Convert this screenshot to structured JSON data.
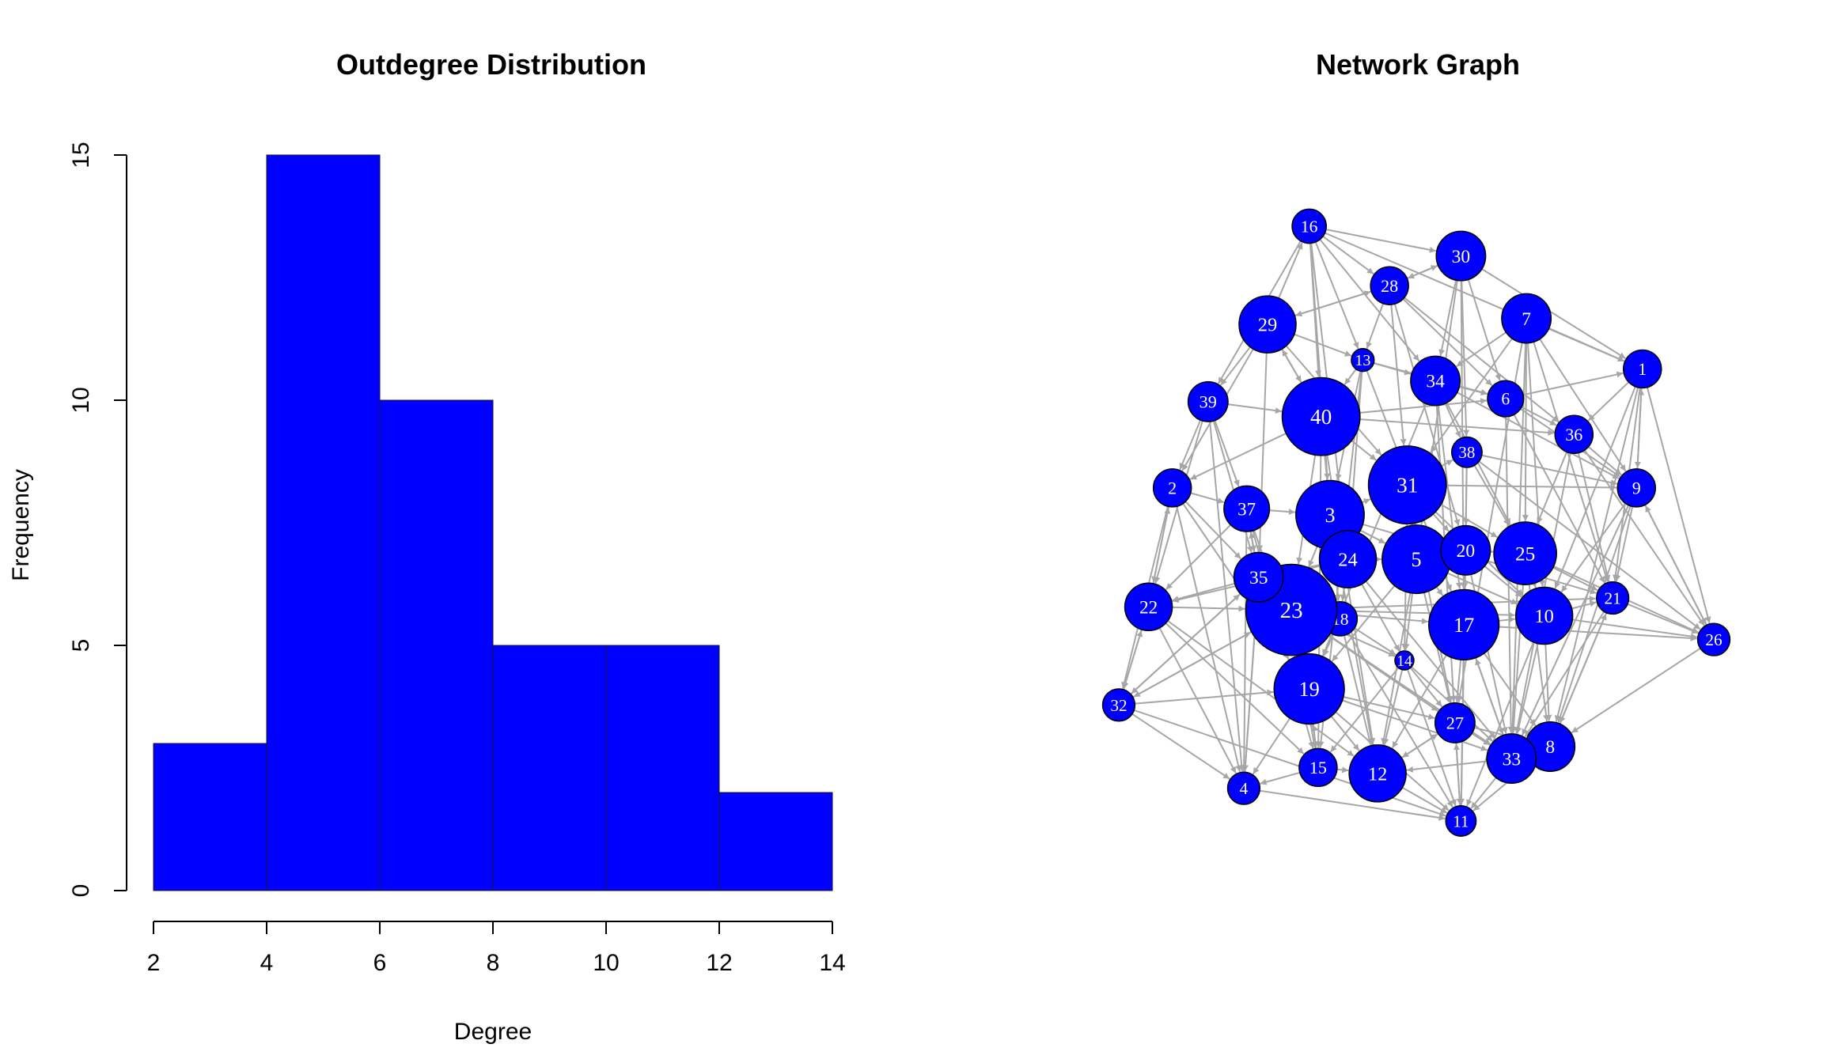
{
  "colors": {
    "bar_fill": "#0000ff",
    "node_fill": "#0000ff",
    "node_label": "#ffffff",
    "edge": "#a6a6a6",
    "axis": "#000000"
  },
  "chart_data": [
    {
      "type": "bar",
      "subtype": "histogram",
      "title": "Outdegree Distribution",
      "xlabel": "Degree",
      "ylabel": "Frequency",
      "bins": [
        [
          2,
          4
        ],
        [
          4,
          6
        ],
        [
          6,
          8
        ],
        [
          8,
          10
        ],
        [
          10,
          12
        ],
        [
          12,
          14
        ]
      ],
      "values": [
        3,
        15,
        10,
        5,
        5,
        2
      ],
      "xlim": [
        2,
        14
      ],
      "ylim": [
        0,
        15
      ],
      "x_ticks": [
        "2",
        "4",
        "6",
        "8",
        "10",
        "12",
        "14"
      ],
      "y_ticks": [
        "0",
        "5",
        "10",
        "15"
      ],
      "grid": false
    },
    {
      "type": "network",
      "title": "Network Graph",
      "directed": true,
      "nodes": [
        {
          "id": "1",
          "x": 0.88,
          "y": 0.76,
          "size": 1.0
        },
        {
          "id": "2",
          "x": 0.09,
          "y": 0.56,
          "size": 1.0
        },
        {
          "id": "3",
          "x": 0.355,
          "y": 0.515,
          "size": 1.8
        },
        {
          "id": "4",
          "x": 0.21,
          "y": 0.055,
          "size": 0.85
        },
        {
          "id": "5",
          "x": 0.5,
          "y": 0.44,
          "size": 1.8
        },
        {
          "id": "6",
          "x": 0.65,
          "y": 0.71,
          "size": 0.95
        },
        {
          "id": "7",
          "x": 0.685,
          "y": 0.845,
          "size": 1.3
        },
        {
          "id": "8",
          "x": 0.725,
          "y": 0.125,
          "size": 1.3
        },
        {
          "id": "9",
          "x": 0.87,
          "y": 0.56,
          "size": 1.0
        },
        {
          "id": "10",
          "x": 0.715,
          "y": 0.345,
          "size": 1.5
        },
        {
          "id": "11",
          "x": 0.575,
          "y": 0.0,
          "size": 0.8
        },
        {
          "id": "12",
          "x": 0.435,
          "y": 0.08,
          "size": 1.5
        },
        {
          "id": "13",
          "x": 0.41,
          "y": 0.775,
          "size": 0.6
        },
        {
          "id": "14",
          "x": 0.48,
          "y": 0.27,
          "size": 0.5
        },
        {
          "id": "15",
          "x": 0.335,
          "y": 0.09,
          "size": 1.0
        },
        {
          "id": "16",
          "x": 0.32,
          "y": 1.0,
          "size": 0.9
        },
        {
          "id": "17",
          "x": 0.58,
          "y": 0.33,
          "size": 1.85
        },
        {
          "id": "18",
          "x": 0.372,
          "y": 0.34,
          "size": 0.9
        },
        {
          "id": "19",
          "x": 0.32,
          "y": 0.222,
          "size": 1.85
        },
        {
          "id": "20",
          "x": 0.583,
          "y": 0.455,
          "size": 1.3
        },
        {
          "id": "21",
          "x": 0.83,
          "y": 0.375,
          "size": 0.85
        },
        {
          "id": "22",
          "x": 0.05,
          "y": 0.36,
          "size": 1.25
        },
        {
          "id": "23",
          "x": 0.29,
          "y": 0.355,
          "size": 2.4
        },
        {
          "id": "24",
          "x": 0.385,
          "y": 0.44,
          "size": 1.5
        },
        {
          "id": "25",
          "x": 0.683,
          "y": 0.45,
          "size": 1.65
        },
        {
          "id": "26",
          "x": 1.0,
          "y": 0.305,
          "size": 0.85
        },
        {
          "id": "27",
          "x": 0.565,
          "y": 0.165,
          "size": 1.05
        },
        {
          "id": "28",
          "x": 0.455,
          "y": 0.9,
          "size": 1.0
        },
        {
          "id": "29",
          "x": 0.25,
          "y": 0.835,
          "size": 1.5
        },
        {
          "id": "30",
          "x": 0.575,
          "y": 0.95,
          "size": 1.3
        },
        {
          "id": "31",
          "x": 0.485,
          "y": 0.565,
          "size": 2.05
        },
        {
          "id": "32",
          "x": 0.0,
          "y": 0.195,
          "size": 0.85
        },
        {
          "id": "33",
          "x": 0.66,
          "y": 0.105,
          "size": 1.3
        },
        {
          "id": "34",
          "x": 0.532,
          "y": 0.74,
          "size": 1.3
        },
        {
          "id": "35",
          "x": 0.235,
          "y": 0.41,
          "size": 1.3
        },
        {
          "id": "36",
          "x": 0.765,
          "y": 0.65,
          "size": 1.0
        },
        {
          "id": "37",
          "x": 0.215,
          "y": 0.525,
          "size": 1.2
        },
        {
          "id": "38",
          "x": 0.585,
          "y": 0.62,
          "size": 0.8
        },
        {
          "id": "39",
          "x": 0.15,
          "y": 0.705,
          "size": 1.05
        },
        {
          "id": "40",
          "x": 0.34,
          "y": 0.68,
          "size": 2.05
        }
      ],
      "edges": [
        [
          "16",
          "28"
        ],
        [
          "16",
          "30"
        ],
        [
          "16",
          "13"
        ],
        [
          "16",
          "40"
        ],
        [
          "16",
          "3"
        ],
        [
          "16",
          "39"
        ],
        [
          "16",
          "1"
        ],
        [
          "16",
          "34"
        ],
        [
          "16",
          "24"
        ],
        [
          "30",
          "28"
        ],
        [
          "30",
          "34"
        ],
        [
          "30",
          "38"
        ],
        [
          "30",
          "5"
        ],
        [
          "30",
          "1"
        ],
        [
          "30",
          "6"
        ],
        [
          "30",
          "17"
        ],
        [
          "28",
          "13"
        ],
        [
          "28",
          "29"
        ],
        [
          "28",
          "31"
        ],
        [
          "28",
          "6"
        ],
        [
          "28",
          "20"
        ],
        [
          "28",
          "36"
        ],
        [
          "7",
          "1"
        ],
        [
          "7",
          "34"
        ],
        [
          "7",
          "25"
        ],
        [
          "7",
          "9"
        ],
        [
          "7",
          "10"
        ],
        [
          "7",
          "31"
        ],
        [
          "7",
          "21"
        ],
        [
          "7",
          "33"
        ],
        [
          "7",
          "27"
        ],
        [
          "29",
          "16"
        ],
        [
          "29",
          "39"
        ],
        [
          "29",
          "2"
        ],
        [
          "29",
          "13"
        ],
        [
          "29",
          "31"
        ],
        [
          "29",
          "35"
        ],
        [
          "29",
          "40"
        ],
        [
          "13",
          "40"
        ],
        [
          "13",
          "34"
        ],
        [
          "13",
          "6"
        ],
        [
          "13",
          "3"
        ],
        [
          "13",
          "24"
        ],
        [
          "13",
          "17"
        ],
        [
          "13",
          "15"
        ],
        [
          "39",
          "2"
        ],
        [
          "39",
          "37"
        ],
        [
          "39",
          "22"
        ],
        [
          "39",
          "40"
        ],
        [
          "39",
          "35"
        ],
        [
          "39",
          "4"
        ],
        [
          "40",
          "31"
        ],
        [
          "40",
          "6"
        ],
        [
          "40",
          "36"
        ],
        [
          "40",
          "29"
        ],
        [
          "40",
          "2"
        ],
        [
          "40",
          "18"
        ],
        [
          "40",
          "23"
        ],
        [
          "40",
          "15"
        ],
        [
          "40",
          "12"
        ],
        [
          "34",
          "6"
        ],
        [
          "34",
          "38"
        ],
        [
          "34",
          "25"
        ],
        [
          "34",
          "9"
        ],
        [
          "34",
          "17"
        ],
        [
          "34",
          "19"
        ],
        [
          "34",
          "27"
        ],
        [
          "6",
          "1"
        ],
        [
          "6",
          "36"
        ],
        [
          "6",
          "9"
        ],
        [
          "6",
          "21"
        ],
        [
          "6",
          "33"
        ],
        [
          "1",
          "9"
        ],
        [
          "1",
          "26"
        ],
        [
          "1",
          "36"
        ],
        [
          "1",
          "21"
        ],
        [
          "1",
          "8"
        ],
        [
          "1",
          "10"
        ],
        [
          "36",
          "9"
        ],
        [
          "36",
          "21"
        ],
        [
          "36",
          "26"
        ],
        [
          "36",
          "33"
        ],
        [
          "36",
          "25"
        ],
        [
          "2",
          "37"
        ],
        [
          "2",
          "22"
        ],
        [
          "2",
          "35"
        ],
        [
          "2",
          "4"
        ],
        [
          "2",
          "32"
        ],
        [
          "2",
          "19"
        ],
        [
          "37",
          "3"
        ],
        [
          "37",
          "35"
        ],
        [
          "37",
          "22"
        ],
        [
          "37",
          "4"
        ],
        [
          "37",
          "19"
        ],
        [
          "37",
          "15"
        ],
        [
          "3",
          "31"
        ],
        [
          "3",
          "24"
        ],
        [
          "3",
          "5"
        ],
        [
          "3",
          "23"
        ],
        [
          "3",
          "18"
        ],
        [
          "3",
          "21"
        ],
        [
          "3",
          "12"
        ],
        [
          "31",
          "38"
        ],
        [
          "31",
          "20"
        ],
        [
          "31",
          "25"
        ],
        [
          "31",
          "5"
        ],
        [
          "31",
          "10"
        ],
        [
          "31",
          "9"
        ],
        [
          "31",
          "27"
        ],
        [
          "31",
          "14"
        ],
        [
          "38",
          "9"
        ],
        [
          "38",
          "20"
        ],
        [
          "38",
          "25"
        ],
        [
          "38",
          "26"
        ],
        [
          "38",
          "11"
        ],
        [
          "9",
          "21"
        ],
        [
          "9",
          "26"
        ],
        [
          "9",
          "8"
        ],
        [
          "9",
          "33"
        ],
        [
          "9",
          "10"
        ],
        [
          "24",
          "5"
        ],
        [
          "24",
          "35"
        ],
        [
          "24",
          "22"
        ],
        [
          "24",
          "18"
        ],
        [
          "24",
          "14"
        ],
        [
          "24",
          "33"
        ],
        [
          "5",
          "20"
        ],
        [
          "5",
          "17"
        ],
        [
          "5",
          "10"
        ],
        [
          "5",
          "14"
        ],
        [
          "5",
          "12"
        ],
        [
          "5",
          "27"
        ],
        [
          "5",
          "19"
        ],
        [
          "20",
          "25"
        ],
        [
          "20",
          "17"
        ],
        [
          "20",
          "10"
        ],
        [
          "20",
          "33"
        ],
        [
          "20",
          "11"
        ],
        [
          "25",
          "21"
        ],
        [
          "25",
          "10"
        ],
        [
          "25",
          "26"
        ],
        [
          "25",
          "8"
        ],
        [
          "25",
          "33"
        ],
        [
          "35",
          "22"
        ],
        [
          "35",
          "23"
        ],
        [
          "35",
          "32"
        ],
        [
          "35",
          "19"
        ],
        [
          "35",
          "4"
        ],
        [
          "22",
          "32"
        ],
        [
          "22",
          "23"
        ],
        [
          "22",
          "4"
        ],
        [
          "22",
          "15"
        ],
        [
          "22",
          "12"
        ],
        [
          "23",
          "18"
        ],
        [
          "23",
          "14"
        ],
        [
          "23",
          "17"
        ],
        [
          "23",
          "10"
        ],
        [
          "23",
          "21"
        ],
        [
          "23",
          "19"
        ],
        [
          "23",
          "32"
        ],
        [
          "23",
          "15"
        ],
        [
          "23",
          "33"
        ],
        [
          "23",
          "27"
        ],
        [
          "18",
          "14"
        ],
        [
          "18",
          "19"
        ],
        [
          "18",
          "12"
        ],
        [
          "18",
          "11"
        ],
        [
          "17",
          "10"
        ],
        [
          "17",
          "27"
        ],
        [
          "17",
          "33"
        ],
        [
          "17",
          "11"
        ],
        [
          "17",
          "8"
        ],
        [
          "17",
          "12"
        ],
        [
          "17",
          "26"
        ],
        [
          "10",
          "21"
        ],
        [
          "10",
          "8"
        ],
        [
          "10",
          "33"
        ],
        [
          "10",
          "26"
        ],
        [
          "10",
          "11"
        ],
        [
          "21",
          "26"
        ],
        [
          "21",
          "8"
        ],
        [
          "21",
          "33"
        ],
        [
          "14",
          "12"
        ],
        [
          "14",
          "27"
        ],
        [
          "14",
          "33"
        ],
        [
          "14",
          "11"
        ],
        [
          "14",
          "15"
        ],
        [
          "32",
          "4"
        ],
        [
          "32",
          "19"
        ],
        [
          "32",
          "22"
        ],
        [
          "32",
          "23"
        ],
        [
          "32",
          "11"
        ],
        [
          "19",
          "15"
        ],
        [
          "19",
          "12"
        ],
        [
          "19",
          "4"
        ],
        [
          "19",
          "27"
        ],
        [
          "19",
          "11"
        ],
        [
          "19",
          "33"
        ],
        [
          "27",
          "11"
        ],
        [
          "27",
          "33"
        ],
        [
          "27",
          "12"
        ],
        [
          "27",
          "8"
        ],
        [
          "33",
          "8"
        ],
        [
          "33",
          "11"
        ],
        [
          "33",
          "12"
        ],
        [
          "15",
          "12"
        ],
        [
          "15",
          "4"
        ],
        [
          "12",
          "11"
        ],
        [
          "4",
          "11"
        ],
        [
          "26",
          "8"
        ],
        [
          "8",
          "11"
        ],
        [
          "11",
          "27"
        ],
        [
          "12",
          "27"
        ],
        [
          "4",
          "35"
        ],
        [
          "15",
          "19"
        ],
        [
          "33",
          "17"
        ],
        [
          "8",
          "21"
        ],
        [
          "26",
          "9"
        ],
        [
          "22",
          "2"
        ],
        [
          "9",
          "1"
        ],
        [
          "28",
          "30"
        ],
        [
          "29",
          "28"
        ],
        [
          "35",
          "37"
        ],
        [
          "32",
          "35"
        ]
      ]
    }
  ]
}
